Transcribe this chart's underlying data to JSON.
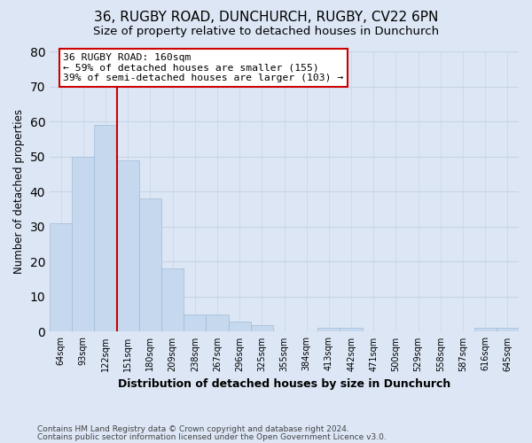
{
  "title": "36, RUGBY ROAD, DUNCHURCH, RUGBY, CV22 6PN",
  "subtitle": "Size of property relative to detached houses in Dunchurch",
  "xlabel": "Distribution of detached houses by size in Dunchurch",
  "ylabel": "Number of detached properties",
  "footnote1": "Contains HM Land Registry data © Crown copyright and database right 2024.",
  "footnote2": "Contains public sector information licensed under the Open Government Licence v3.0.",
  "bar_labels": [
    "64sqm",
    "93sqm",
    "122sqm",
    "151sqm",
    "180sqm",
    "209sqm",
    "238sqm",
    "267sqm",
    "296sqm",
    "325sqm",
    "355sqm",
    "384sqm",
    "413sqm",
    "442sqm",
    "471sqm",
    "500sqm",
    "529sqm",
    "558sqm",
    "587sqm",
    "616sqm",
    "645sqm"
  ],
  "bar_values": [
    31,
    50,
    59,
    49,
    38,
    18,
    5,
    5,
    3,
    2,
    0,
    0,
    1,
    1,
    0,
    0,
    0,
    0,
    0,
    1,
    1
  ],
  "bar_color": "#c5d8ee",
  "bar_edge_color": "#a0bcd8",
  "vline_index": 3,
  "vline_color": "#cc0000",
  "annotation_line1": "36 RUGBY ROAD: 160sqm",
  "annotation_line2": "← 59% of detached houses are smaller (155)",
  "annotation_line3": "39% of semi-detached houses are larger (103) →",
  "annotation_box_edgecolor": "#cc0000",
  "annotation_box_facecolor": "#ffffff",
  "ylim": [
    0,
    80
  ],
  "yticks": [
    0,
    10,
    20,
    30,
    40,
    50,
    60,
    70,
    80
  ],
  "grid_color": "#c8d4e8",
  "background_color": "#dce6f5",
  "plot_background_color": "#dce6f5",
  "title_fontsize": 11,
  "subtitle_fontsize": 9.5,
  "footnote_fontsize": 6.5
}
